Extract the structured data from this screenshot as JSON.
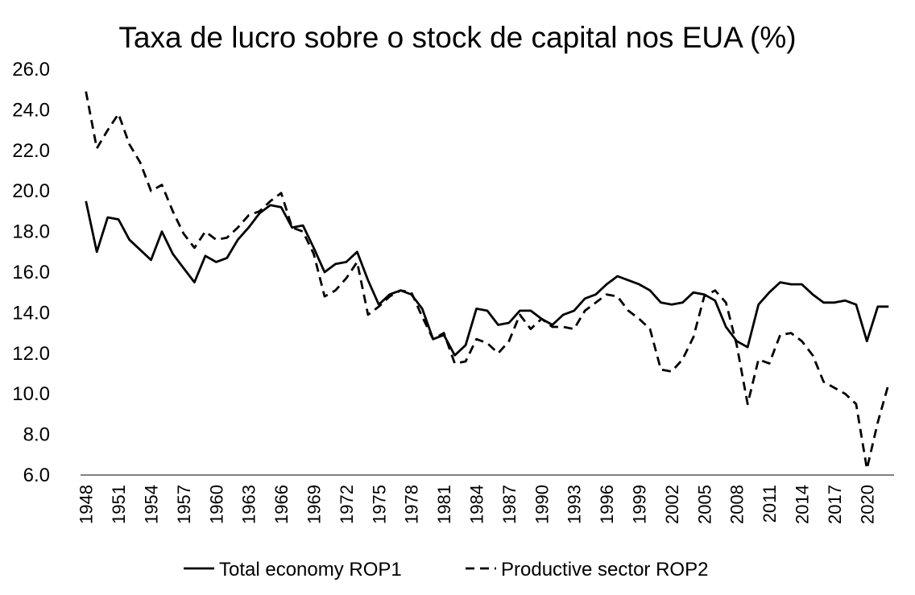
{
  "chart_data": {
    "type": "line",
    "title": "Taxa de lucro sobre o stock de capital nos EUA (%)",
    "xlabel": "",
    "ylabel": "",
    "ylim": [
      6.0,
      26.0
    ],
    "yticks": [
      "6.0",
      "8.0",
      "10.0",
      "12.0",
      "14.0",
      "16.0",
      "18.0",
      "20.0",
      "22.0",
      "24.0",
      "26.0"
    ],
    "xticks": [
      "1948",
      "1951",
      "1954",
      "1957",
      "1960",
      "1963",
      "1966",
      "1969",
      "1972",
      "1975",
      "1978",
      "1981",
      "1984",
      "1987",
      "1990",
      "1993",
      "1996",
      "1999",
      "2002",
      "2005",
      "2008",
      "2011",
      "2014",
      "2017",
      "2020"
    ],
    "grid": false,
    "legend_position": "bottom",
    "x": [
      1948,
      1949,
      1950,
      1951,
      1952,
      1953,
      1954,
      1955,
      1956,
      1957,
      1958,
      1959,
      1960,
      1961,
      1962,
      1963,
      1964,
      1965,
      1966,
      1967,
      1968,
      1969,
      1970,
      1971,
      1972,
      1973,
      1974,
      1975,
      1976,
      1977,
      1978,
      1979,
      1980,
      1981,
      1982,
      1983,
      1984,
      1985,
      1986,
      1987,
      1988,
      1989,
      1990,
      1991,
      1992,
      1993,
      1994,
      1995,
      1996,
      1997,
      1998,
      1999,
      2000,
      2001,
      2002,
      2003,
      2004,
      2005,
      2006,
      2007,
      2008,
      2009,
      2010,
      2011,
      2012,
      2013,
      2014,
      2015,
      2016,
      2017,
      2018,
      2019,
      2020,
      2021,
      2022
    ],
    "series": [
      {
        "name": "Total economy ROP1",
        "style": "solid",
        "values": [
          19.5,
          17.0,
          18.7,
          18.6,
          17.6,
          17.1,
          16.6,
          18.0,
          16.9,
          16.2,
          15.5,
          16.8,
          16.5,
          16.7,
          17.6,
          18.2,
          18.9,
          19.3,
          19.2,
          18.2,
          18.3,
          17.2,
          16.0,
          16.4,
          16.5,
          17.0,
          15.6,
          14.4,
          14.9,
          15.1,
          14.9,
          14.2,
          12.7,
          12.9,
          11.9,
          12.4,
          14.2,
          14.1,
          13.4,
          13.5,
          14.1,
          14.1,
          13.7,
          13.4,
          13.9,
          14.1,
          14.7,
          14.9,
          15.4,
          15.8,
          15.6,
          15.4,
          15.1,
          14.5,
          14.4,
          14.5,
          15.0,
          14.9,
          14.6,
          13.3,
          12.6,
          12.3,
          14.4,
          15.0,
          15.5,
          15.4,
          15.4,
          14.9,
          14.5,
          14.5,
          14.6,
          14.4,
          12.6,
          14.3,
          14.3
        ]
      },
      {
        "name": "Productive sector ROP2",
        "style": "dashed",
        "values": [
          24.9,
          22.1,
          23.0,
          23.8,
          22.3,
          21.4,
          20.0,
          20.3,
          19.0,
          17.9,
          17.2,
          18.0,
          17.6,
          17.7,
          18.2,
          18.8,
          19.0,
          19.5,
          19.9,
          18.2,
          18.0,
          16.9,
          14.8,
          15.1,
          15.7,
          16.5,
          13.9,
          14.3,
          14.8,
          15.1,
          15.0,
          13.8,
          12.7,
          13.0,
          11.5,
          11.6,
          12.7,
          12.5,
          12.0,
          12.6,
          13.9,
          13.2,
          13.7,
          13.3,
          13.3,
          13.2,
          14.1,
          14.5,
          14.9,
          14.8,
          14.1,
          13.7,
          13.2,
          11.2,
          11.1,
          11.7,
          12.8,
          14.8,
          15.1,
          14.5,
          12.4,
          9.5,
          11.7,
          11.5,
          12.9,
          13.0,
          12.6,
          11.9,
          10.6,
          10.3,
          10.0,
          9.5,
          6.3,
          8.6,
          10.5
        ]
      }
    ]
  },
  "colors": {
    "line": "#000000",
    "background": "#ffffff"
  }
}
